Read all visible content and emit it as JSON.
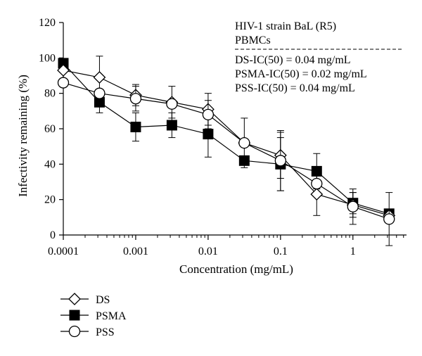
{
  "chart_data": {
    "type": "line",
    "title": "",
    "xlabel": "Concentration (mg/mL)",
    "ylabel": "Infectivity remaining (%)",
    "xscale": "log",
    "xlim": [
      0.0001,
      5.5
    ],
    "ylim": [
      0,
      120
    ],
    "x_ticks": [
      0.0001,
      0.001,
      0.01,
      0.1,
      1
    ],
    "x_tick_labels": [
      "0.0001",
      "0.001",
      "0.01",
      "0.1",
      "1"
    ],
    "y_ticks": [
      0,
      20,
      40,
      60,
      80,
      100,
      120
    ],
    "y_tick_labels": [
      "0",
      "20",
      "40",
      "60",
      "80",
      "100",
      "120"
    ],
    "grid": false,
    "legend_position": "bottom-left",
    "annotation": {
      "header_lines": [
        "HIV-1 strain BaL (R5)",
        "PBMCs"
      ],
      "ic_lines": [
        "DS-IC(50) = 0.04 mg/mL",
        "PSMA-IC(50) = 0.02 mg/mL",
        "PSS-IC(50) = 0.04 mg/mL"
      ]
    },
    "series": [
      {
        "name": "DS",
        "marker": "diamond-open",
        "points": [
          {
            "x": 0.0001,
            "y": 93,
            "err": 0
          },
          {
            "x": 0.000316,
            "y": 89,
            "err": 12
          },
          {
            "x": 0.001,
            "y": 79,
            "err": 6
          },
          {
            "x": 0.00316,
            "y": 75,
            "err": 9
          },
          {
            "x": 0.01,
            "y": 71,
            "err": 9
          },
          {
            "x": 0.0316,
            "y": 52,
            "err": 0
          },
          {
            "x": 0.1,
            "y": 45,
            "err": 13
          },
          {
            "x": 0.316,
            "y": 23,
            "err": 12
          },
          {
            "x": 1,
            "y": 17,
            "err": 7
          },
          {
            "x": 3.16,
            "y": 11,
            "err": 0
          }
        ]
      },
      {
        "name": "PSMA",
        "marker": "square-filled",
        "points": [
          {
            "x": 0.0001,
            "y": 97,
            "err": 0
          },
          {
            "x": 0.000316,
            "y": 75,
            "err": 6
          },
          {
            "x": 0.001,
            "y": 61,
            "err": 8
          },
          {
            "x": 0.00316,
            "y": 62,
            "err": 7
          },
          {
            "x": 0.01,
            "y": 57,
            "err": 13
          },
          {
            "x": 0.0316,
            "y": 42,
            "err": 0
          },
          {
            "x": 0.1,
            "y": 40,
            "err": 15
          },
          {
            "x": 0.316,
            "y": 36,
            "err": 10
          },
          {
            "x": 1,
            "y": 18,
            "err": 6
          },
          {
            "x": 3.16,
            "y": 12,
            "err": 0
          }
        ]
      },
      {
        "name": "PSS",
        "marker": "circle-open",
        "points": [
          {
            "x": 0.0001,
            "y": 86,
            "err": 0
          },
          {
            "x": 0.000316,
            "y": 80,
            "err": 0
          },
          {
            "x": 0.001,
            "y": 77,
            "err": 7
          },
          {
            "x": 0.00316,
            "y": 74,
            "err": 0
          },
          {
            "x": 0.01,
            "y": 68,
            "err": 8
          },
          {
            "x": 0.0316,
            "y": 52,
            "err": 14
          },
          {
            "x": 0.1,
            "y": 42,
            "err": 17
          },
          {
            "x": 0.316,
            "y": 29,
            "err": 0
          },
          {
            "x": 1,
            "y": 16,
            "err": 10
          },
          {
            "x": 3.16,
            "y": 9,
            "err": 15
          }
        ]
      }
    ]
  }
}
